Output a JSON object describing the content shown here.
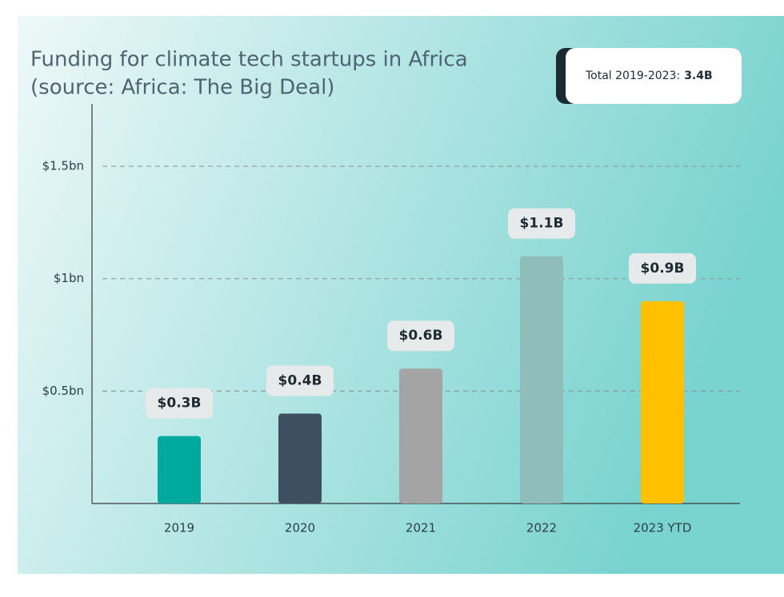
{
  "chart_data": {
    "type": "bar",
    "title": "Funding for climate tech startups in Africa",
    "subtitle": "(source: Africa: The Big Deal)",
    "total_label": "Total 2019-2023:",
    "total_value": "3.4B",
    "categories": [
      "2019",
      "2020",
      "2021",
      "2022",
      "2023 YTD"
    ],
    "values": [
      0.3,
      0.4,
      0.6,
      1.1,
      0.9
    ],
    "value_labels": [
      "$0.3B",
      "$0.4B",
      "$0.6B",
      "$1.1B",
      "$0.9B"
    ],
    "colors": [
      "#00a99d",
      "#3d4f61",
      "#a4a4a4",
      "#8fbdb9",
      "#ffc000"
    ],
    "ylim": [
      0,
      1.75
    ],
    "yticks": [
      {
        "value": 0.5,
        "label": "$0.5bn"
      },
      {
        "value": 1,
        "label": "$1bn"
      },
      {
        "value": 1.5,
        "label": "$1.5bn"
      }
    ],
    "grid": true
  }
}
